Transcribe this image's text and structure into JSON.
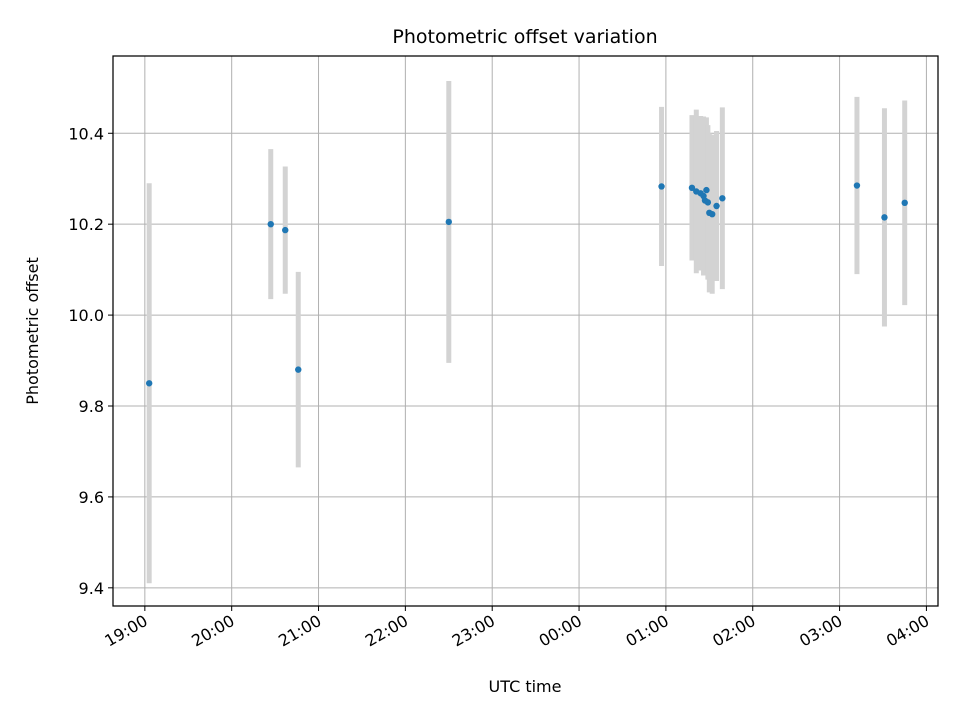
{
  "chart_data": {
    "type": "scatter",
    "title": "Photometric offset variation",
    "xlabel": "UTC time",
    "ylabel": "Photometric offset",
    "x_axis": "time",
    "xlim": [
      "18:38",
      "04:08"
    ],
    "ylim": [
      9.36,
      10.57
    ],
    "xticks": [
      "19:00",
      "20:00",
      "21:00",
      "22:00",
      "23:00",
      "00:00",
      "01:00",
      "02:00",
      "03:00",
      "04:00"
    ],
    "yticks": [
      9.4,
      9.6,
      9.8,
      10.0,
      10.2,
      10.4
    ],
    "grid": true,
    "legend": "none",
    "colors": {
      "points": "#1f77b4",
      "errorbars": "#d3d3d3",
      "grid": "#b0b0b0"
    },
    "series": [
      {
        "points": [
          {
            "x": "19:03",
            "y": 9.85,
            "err": 0.44
          },
          {
            "x": "20:27",
            "y": 10.2,
            "err": 0.165
          },
          {
            "x": "20:37",
            "y": 10.187,
            "err": 0.14
          },
          {
            "x": "20:46",
            "y": 9.88,
            "err": 0.215
          },
          {
            "x": "22:30",
            "y": 10.205,
            "err": 0.31
          },
          {
            "x": "00:57",
            "y": 10.283,
            "err": 0.175
          },
          {
            "x": "01:18",
            "y": 10.28,
            "err": 0.16
          },
          {
            "x": "01:21",
            "y": 10.272,
            "err": 0.18
          },
          {
            "x": "01:24",
            "y": 10.268,
            "err": 0.17
          },
          {
            "x": "01:26",
            "y": 10.262,
            "err": 0.175
          },
          {
            "x": "01:27",
            "y": 10.252,
            "err": 0.16
          },
          {
            "x": "01:28",
            "y": 10.275,
            "err": 0.16
          },
          {
            "x": "01:29",
            "y": 10.248,
            "err": 0.17
          },
          {
            "x": "01:30",
            "y": 10.225,
            "err": 0.175
          },
          {
            "x": "01:32",
            "y": 10.222,
            "err": 0.175
          },
          {
            "x": "01:35",
            "y": 10.24,
            "err": 0.165
          },
          {
            "x": "01:39",
            "y": 10.257,
            "err": 0.2
          },
          {
            "x": "03:12",
            "y": 10.285,
            "err": 0.195
          },
          {
            "x": "03:31",
            "y": 10.215,
            "err": 0.24
          },
          {
            "x": "03:45",
            "y": 10.247,
            "err": 0.225
          }
        ]
      }
    ]
  }
}
